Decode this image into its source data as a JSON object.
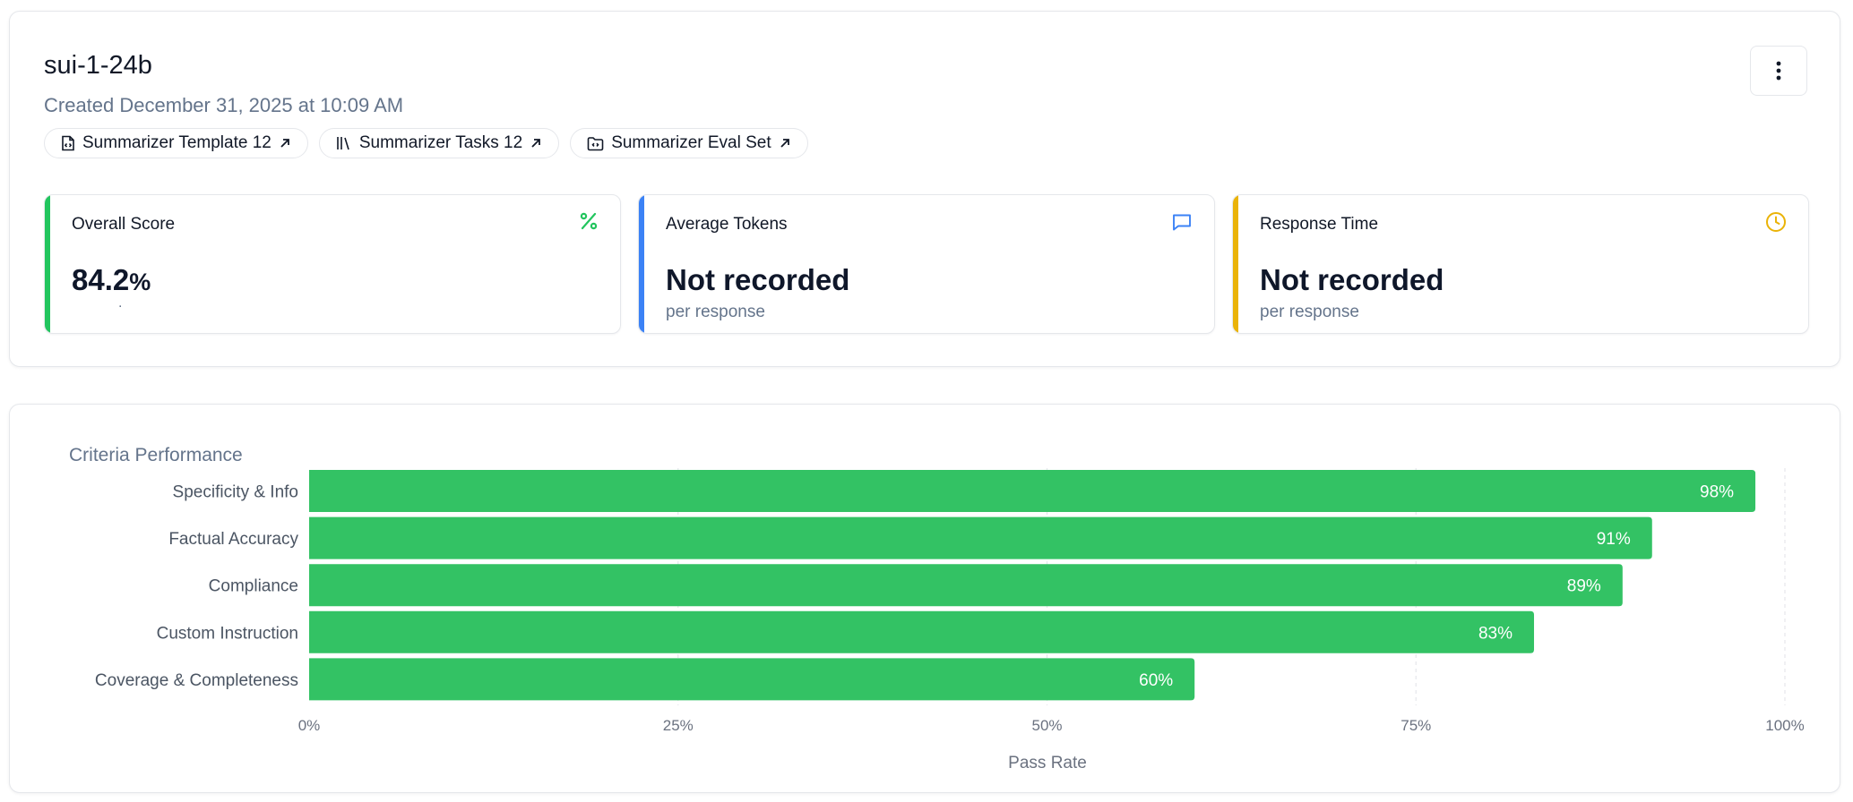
{
  "header": {
    "title": "sui-1-24b",
    "created": "Created December 31, 2025 at 10:09 AM",
    "menu_icon": "more-vertical-icon"
  },
  "links": [
    {
      "label": "Summarizer Template 12",
      "icon": "file-code-icon"
    },
    {
      "label": "Summarizer Tasks 12",
      "icon": "library-icon"
    },
    {
      "label": "Summarizer Eval Set",
      "icon": "folder-code-icon"
    }
  ],
  "metrics": [
    {
      "label": "Overall Score",
      "value": "84.2",
      "unit": "%",
      "sub": ".",
      "icon": "percent-icon",
      "color": "#22c55e"
    },
    {
      "label": "Average Tokens",
      "value": "Not recorded",
      "unit": "",
      "sub": "per response",
      "icon": "message-square-icon",
      "color": "#3b82f6"
    },
    {
      "label": "Response Time",
      "value": "Not recorded",
      "unit": "",
      "sub": "per response",
      "icon": "clock-icon",
      "color": "#eab308"
    }
  ],
  "chart_data": {
    "type": "bar",
    "orientation": "horizontal",
    "title": "Criteria Performance",
    "categories": [
      "Specificity & Info",
      "Factual Accuracy",
      "Compliance",
      "Custom Instruction",
      "Coverage & Completeness"
    ],
    "values": [
      98,
      91,
      89,
      83,
      60
    ],
    "value_labels": [
      "98%",
      "91%",
      "89%",
      "83%",
      "60%"
    ],
    "xlabel": "Pass Rate",
    "xlim": [
      0,
      100
    ],
    "ticks": [
      0,
      25,
      50,
      75,
      100
    ],
    "tick_labels": [
      "0%",
      "25%",
      "50%",
      "75%",
      "100%"
    ],
    "bar_color": "#33c264",
    "grid": "vertical dashed"
  }
}
